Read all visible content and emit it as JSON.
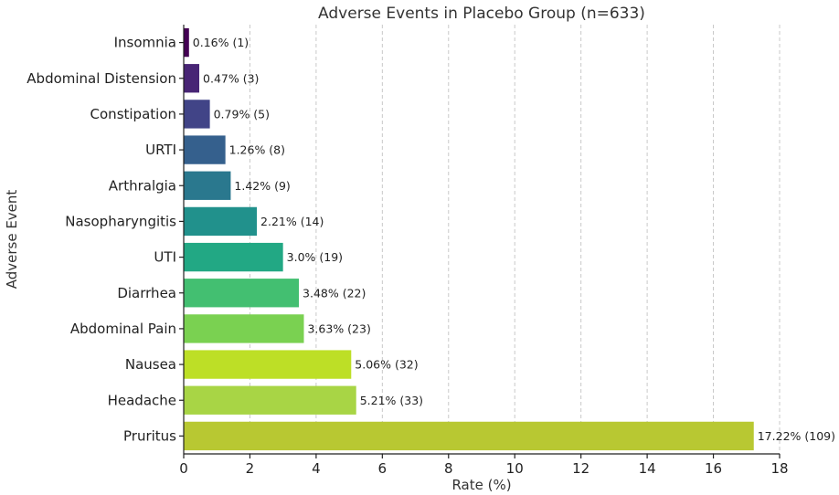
{
  "chart_data": {
    "type": "bar",
    "orientation": "horizontal",
    "title": "Adverse Events in Placebo Group (n=633)",
    "xlabel": "Rate (%)",
    "ylabel": "Adverse Event",
    "xlim": [
      0,
      18
    ],
    "xticks": [
      0,
      2,
      4,
      6,
      8,
      10,
      12,
      14,
      16,
      18
    ],
    "grid": "vertical dashed",
    "categories": [
      "Insomnia",
      "Abdominal Distension",
      "Constipation",
      "URTI",
      "Arthralgia",
      "Nasopharyngitis",
      "UTI",
      "Diarrhea",
      "Abdominal Pain",
      "Nausea",
      "Headache",
      "Pruritus"
    ],
    "values": [
      0.16,
      0.47,
      0.79,
      1.26,
      1.42,
      2.21,
      3.0,
      3.48,
      3.63,
      5.06,
      5.21,
      17.22
    ],
    "data_labels": [
      "0.16% (1)",
      "0.47% (3)",
      "0.79% (5)",
      "1.26% (8)",
      "1.42% (9)",
      "2.21% (14)",
      "3.0% (19)",
      "3.48% (22)",
      "3.63% (23)",
      "5.06% (32)",
      "5.21% (33)",
      "17.22% (109)"
    ],
    "colors": [
      "#440154",
      "#482575",
      "#414487",
      "#35608d",
      "#2a788e",
      "#21918c",
      "#22a884",
      "#43bf71",
      "#7ad151",
      "#bddf26",
      "#a8d545",
      "#b8c832"
    ]
  }
}
